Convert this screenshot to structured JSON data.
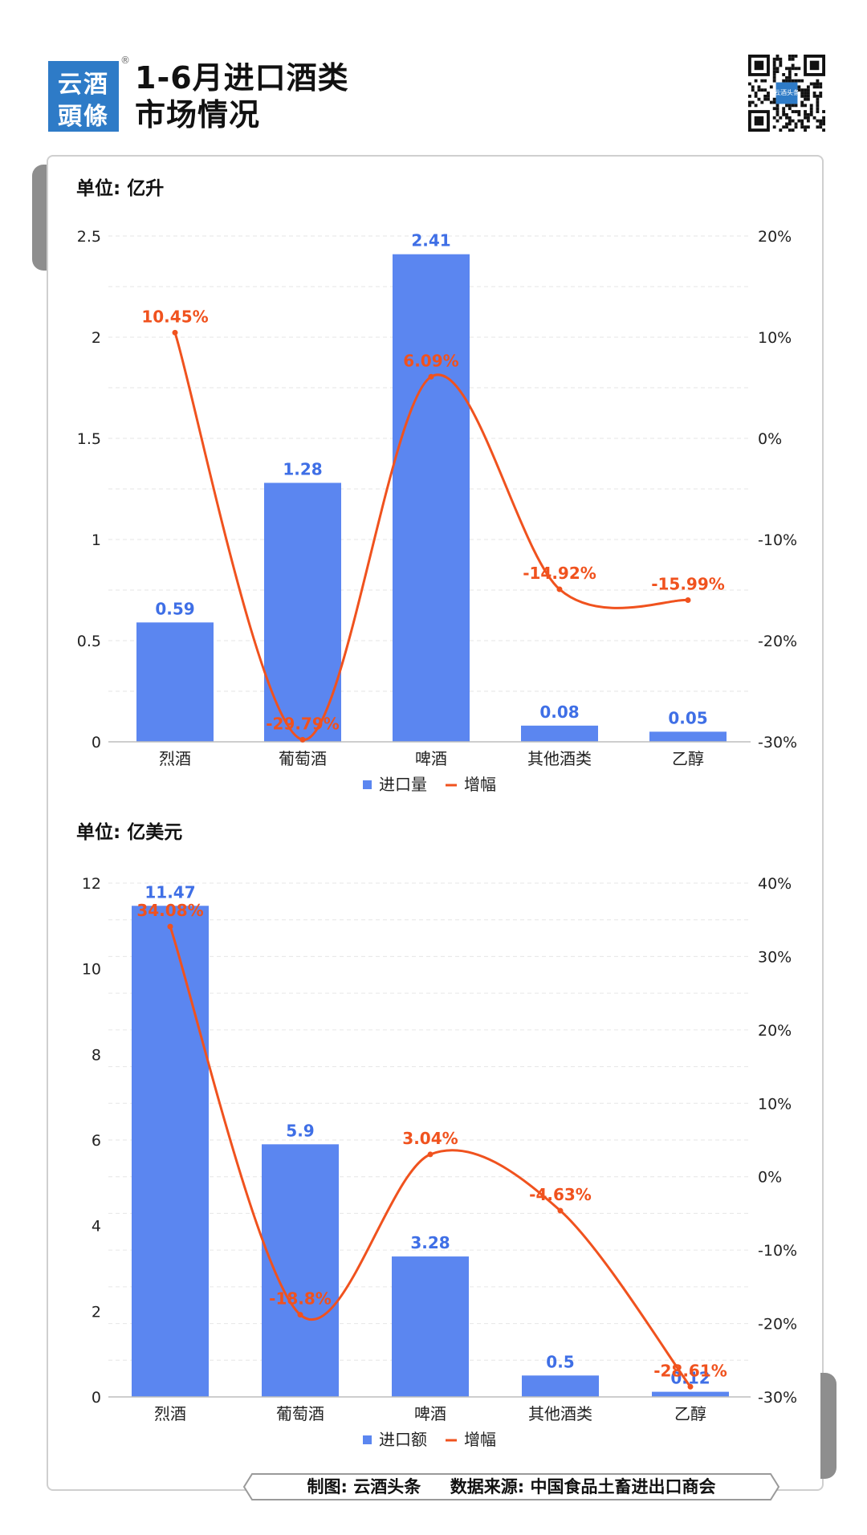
{
  "header": {
    "logo_line1": "云酒",
    "logo_line2": "頭條",
    "logo_mark": "®",
    "title_line1": "1-6月进口酒类",
    "title_line2": "市场情况",
    "qr_center_text": "云酒头条"
  },
  "footer": {
    "credit": "制图: 云酒头条",
    "source": "数据来源: 中国食品土畜进出口商会"
  },
  "colors": {
    "bar": "#5b86f0",
    "line": "#f0521e",
    "bar_label": "#3f6fe6",
    "axis": "#222222",
    "grid": "#e6e6e6"
  },
  "chart_data": [
    {
      "type": "bar",
      "unit_label": "单位: 亿升",
      "categories": [
        "烈酒",
        "葡萄酒",
        "啤酒",
        "其他酒类",
        "乙醇"
      ],
      "series": [
        {
          "name": "进口量",
          "type": "bar",
          "values": [
            0.59,
            1.28,
            2.41,
            0.08,
            0.05
          ],
          "labels": [
            "0.59",
            "1.28",
            "2.41",
            "0.08",
            "0.05"
          ]
        },
        {
          "name": "增幅",
          "type": "line",
          "values": [
            10.45,
            -29.79,
            6.09,
            -14.92,
            -15.99
          ],
          "labels": [
            "10.45%",
            "-29.79%",
            "6.09%",
            "-14.92%",
            "-15.99%"
          ]
        }
      ],
      "ylim": [
        0,
        2.5
      ],
      "yticks": [
        "0",
        "0.5",
        "1",
        "1.5",
        "2",
        "2.5"
      ],
      "y2lim": [
        -30,
        20
      ],
      "y2ticks": [
        "-30%",
        "-20%",
        "-10%",
        "0%",
        "10%",
        "20%"
      ],
      "grid": true,
      "legend": "bottom"
    },
    {
      "type": "bar",
      "unit_label": "单位: 亿美元",
      "categories": [
        "烈酒",
        "葡萄酒",
        "啤酒",
        "其他酒类",
        "乙醇"
      ],
      "series": [
        {
          "name": "进口额",
          "type": "bar",
          "values": [
            11.47,
            5.9,
            3.28,
            0.5,
            0.12
          ],
          "labels": [
            "11.47",
            "5.9",
            "3.28",
            "0.5",
            "0.12"
          ]
        },
        {
          "name": "增幅",
          "type": "line",
          "values": [
            34.08,
            -18.8,
            3.04,
            -4.63,
            -28.61
          ],
          "labels": [
            "34.08%",
            "-18.8%",
            "3.04%",
            "-4.63%",
            "-28.61%"
          ]
        }
      ],
      "ylim": [
        0,
        12
      ],
      "yticks": [
        "0",
        "2",
        "4",
        "6",
        "8",
        "10",
        "12"
      ],
      "y2lim": [
        -30,
        40
      ],
      "y2ticks": [
        "-30%",
        "-20%",
        "-10%",
        "0%",
        "10%",
        "20%",
        "30%",
        "40%"
      ],
      "grid": true,
      "legend": "bottom"
    }
  ]
}
